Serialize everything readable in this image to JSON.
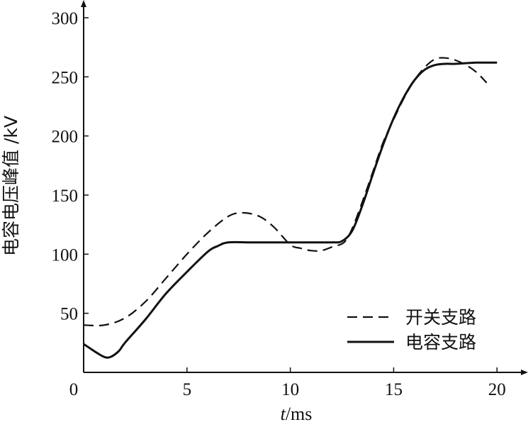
{
  "chart_data": {
    "type": "line",
    "xlabel_italic": "t",
    "xlabel_rest": "/ms",
    "ylabel": "电容电压峰值 /kV",
    "xlim": [
      0,
      21.5
    ],
    "ylim": [
      0,
      315
    ],
    "x_ticks": [
      0,
      5,
      10,
      15,
      20
    ],
    "y_ticks": [
      50,
      100,
      150,
      200,
      250,
      300
    ],
    "grid": false,
    "legend_position": "bottom-right",
    "series": [
      {
        "name": "开关支路",
        "style": "dashed",
        "color": "#111111",
        "points": [
          [
            0,
            40
          ],
          [
            1,
            40
          ],
          [
            2,
            46
          ],
          [
            3,
            60
          ],
          [
            4,
            80
          ],
          [
            5,
            100
          ],
          [
            6,
            118
          ],
          [
            7,
            132
          ],
          [
            7.7,
            135
          ],
          [
            8.5,
            132
          ],
          [
            9.2,
            123
          ],
          [
            10,
            108
          ],
          [
            10.5,
            105
          ],
          [
            11,
            103
          ],
          [
            11.5,
            103
          ],
          [
            12,
            106
          ],
          [
            12.6,
            110
          ],
          [
            13,
            122
          ],
          [
            13.5,
            145
          ],
          [
            14,
            170
          ],
          [
            14.5,
            195
          ],
          [
            15,
            214
          ],
          [
            15.5,
            232
          ],
          [
            16,
            247
          ],
          [
            16.5,
            258
          ],
          [
            17,
            265
          ],
          [
            17.5,
            266
          ],
          [
            18,
            264
          ],
          [
            18.5,
            260
          ],
          [
            19,
            254
          ],
          [
            19.5,
            245
          ]
        ]
      },
      {
        "name": "电容支路",
        "style": "solid",
        "color": "#111111",
        "points": [
          [
            0,
            24
          ],
          [
            0.6,
            17
          ],
          [
            1,
            13
          ],
          [
            1.3,
            13
          ],
          [
            1.7,
            18
          ],
          [
            2,
            25
          ],
          [
            3,
            45
          ],
          [
            4,
            67
          ],
          [
            5,
            85
          ],
          [
            6,
            102
          ],
          [
            6.5,
            107
          ],
          [
            7,
            110
          ],
          [
            8,
            110
          ],
          [
            9,
            110
          ],
          [
            10,
            110
          ],
          [
            11,
            110
          ],
          [
            12,
            110
          ],
          [
            12.5,
            111
          ],
          [
            13,
            120
          ],
          [
            13.5,
            142
          ],
          [
            14,
            168
          ],
          [
            14.5,
            193
          ],
          [
            15,
            215
          ],
          [
            15.5,
            233
          ],
          [
            16,
            247
          ],
          [
            16.5,
            256
          ],
          [
            17,
            260
          ],
          [
            17.5,
            261
          ],
          [
            18,
            261
          ],
          [
            19,
            262
          ],
          [
            20,
            262
          ]
        ]
      }
    ]
  }
}
